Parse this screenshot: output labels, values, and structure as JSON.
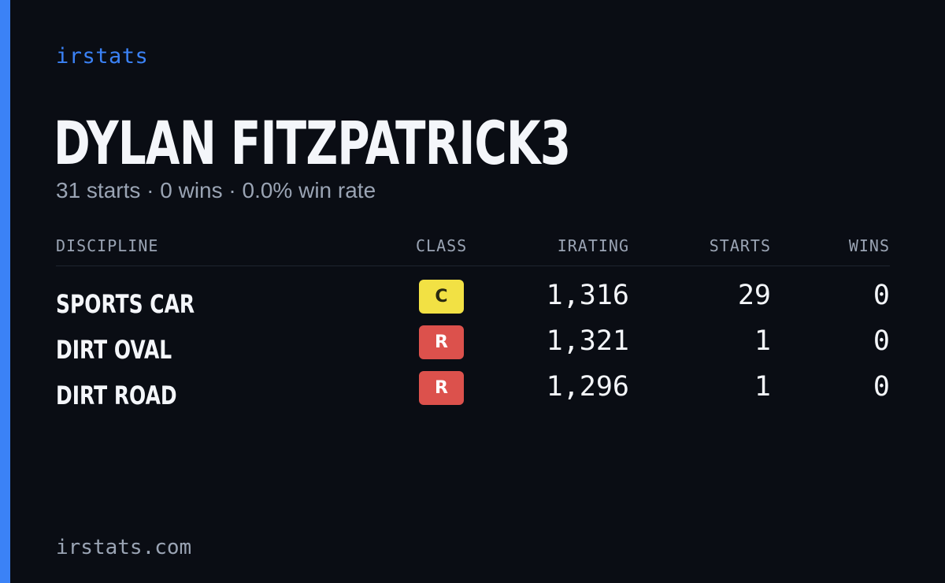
{
  "brand": "irstats",
  "player": {
    "name": "Dylan Fitzpatrick3",
    "summary": "31 starts · 0 wins · 0.0% win rate"
  },
  "table": {
    "headers": {
      "discipline": "DISCIPLINE",
      "class": "CLASS",
      "irating": "IRATING",
      "starts": "STARTS",
      "wins": "WINS"
    },
    "rows": [
      {
        "discipline": "Sports Car",
        "class": "C",
        "class_bg": "#f2e144",
        "class_fg": "#2a2a10",
        "irating": "1,316",
        "starts": "29",
        "wins": "0"
      },
      {
        "discipline": "Dirt Oval",
        "class": "R",
        "class_bg": "#dc514c",
        "class_fg": "#ffffff",
        "irating": "1,321",
        "starts": "1",
        "wins": "0"
      },
      {
        "discipline": "Dirt Road",
        "class": "R",
        "class_bg": "#dc514c",
        "class_fg": "#ffffff",
        "irating": "1,296",
        "starts": "1",
        "wins": "0"
      }
    ]
  },
  "footer": {
    "url": "irstats.com"
  },
  "colors": {
    "background": "#0a0d14",
    "accent": "#3b82f6",
    "text": "#f4f6fa",
    "muted": "#9aa4b4"
  }
}
